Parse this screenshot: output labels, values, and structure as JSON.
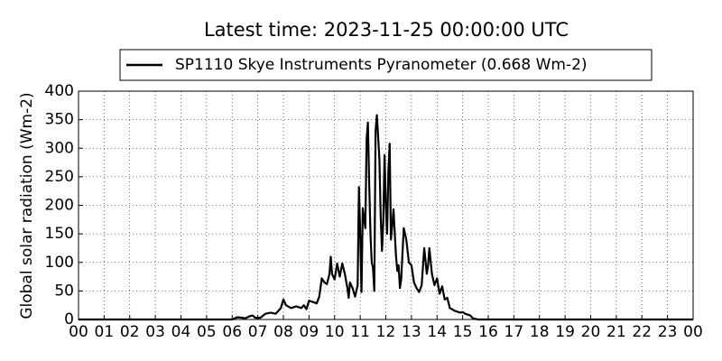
{
  "chart_data": {
    "type": "line",
    "title": "Latest time: 2023-11-25 00:00:00 UTC",
    "y_label": "Global solar radiation (Wm-2)",
    "legend_position": "top-center",
    "grid": true,
    "series": [
      {
        "name": "SP1110 Skye Instruments Pyranometer (0.668 Wm-2)",
        "color": "#000000",
        "x": [
          0,
          6.0,
          6.2,
          6.4,
          6.5,
          6.7,
          6.8,
          6.9,
          7.1,
          7.3,
          7.5,
          7.7,
          7.9,
          8.0,
          8.1,
          8.3,
          8.5,
          8.7,
          8.8,
          8.9,
          9.0,
          9.2,
          9.3,
          9.4,
          9.5,
          9.6,
          9.7,
          9.8,
          9.85,
          9.9,
          10.0,
          10.1,
          10.2,
          10.3,
          10.4,
          10.5,
          10.55,
          10.6,
          10.7,
          10.8,
          10.9,
          10.95,
          11.0,
          11.05,
          11.1,
          11.2,
          11.25,
          11.3,
          11.35,
          11.4,
          11.45,
          11.5,
          11.55,
          11.6,
          11.65,
          11.7,
          11.75,
          11.8,
          11.85,
          11.9,
          11.95,
          12.0,
          12.05,
          12.1,
          12.15,
          12.2,
          12.25,
          12.3,
          12.35,
          12.4,
          12.45,
          12.5,
          12.55,
          12.6,
          12.7,
          12.8,
          12.9,
          13.0,
          13.1,
          13.2,
          13.3,
          13.4,
          13.5,
          13.6,
          13.65,
          13.7,
          13.8,
          13.9,
          14.0,
          14.1,
          14.2,
          14.3,
          14.4,
          14.5,
          14.7,
          14.9,
          15.0,
          15.1,
          15.3,
          15.4,
          15.6,
          24
        ],
        "values": [
          0,
          0,
          4,
          3,
          2,
          6,
          7,
          3,
          3,
          10,
          12,
          10,
          20,
          35,
          25,
          20,
          23,
          20,
          25,
          18,
          33,
          30,
          28,
          40,
          72,
          65,
          62,
          80,
          110,
          80,
          70,
          98,
          75,
          98,
          80,
          55,
          38,
          65,
          55,
          40,
          60,
          232,
          150,
          48,
          195,
          160,
          315,
          345,
          240,
          150,
          100,
          90,
          50,
          330,
          358,
          320,
          280,
          180,
          120,
          170,
          288,
          200,
          150,
          260,
          308,
          140,
          165,
          193,
          150,
          110,
          85,
          95,
          55,
          70,
          160,
          140,
          100,
          95,
          65,
          55,
          48,
          60,
          125,
          80,
          95,
          125,
          80,
          60,
          72,
          45,
          58,
          35,
          38,
          20,
          15,
          12,
          13,
          10,
          7,
          2,
          0,
          0
        ]
      }
    ],
    "xlim": [
      0,
      24
    ],
    "xticks": [
      {
        "value": 0,
        "label": "00"
      },
      {
        "value": 1,
        "label": "01"
      },
      {
        "value": 2,
        "label": "02"
      },
      {
        "value": 3,
        "label": "03"
      },
      {
        "value": 4,
        "label": "04"
      },
      {
        "value": 5,
        "label": "05"
      },
      {
        "value": 6,
        "label": "06"
      },
      {
        "value": 7,
        "label": "07"
      },
      {
        "value": 8,
        "label": "08"
      },
      {
        "value": 9,
        "label": "09"
      },
      {
        "value": 10,
        "label": "10"
      },
      {
        "value": 11,
        "label": "11"
      },
      {
        "value": 12,
        "label": "12"
      },
      {
        "value": 13,
        "label": "13"
      },
      {
        "value": 14,
        "label": "14"
      },
      {
        "value": 15,
        "label": "15"
      },
      {
        "value": 16,
        "label": "16"
      },
      {
        "value": 17,
        "label": "17"
      },
      {
        "value": 18,
        "label": "18"
      },
      {
        "value": 19,
        "label": "19"
      },
      {
        "value": 20,
        "label": "20"
      },
      {
        "value": 21,
        "label": "21"
      },
      {
        "value": 22,
        "label": "22"
      },
      {
        "value": 23,
        "label": "23"
      },
      {
        "value": 24,
        "label": "00"
      }
    ],
    "ylim": [
      0,
      400
    ],
    "yticks": [
      0,
      50,
      100,
      150,
      200,
      250,
      300,
      350,
      400
    ]
  }
}
